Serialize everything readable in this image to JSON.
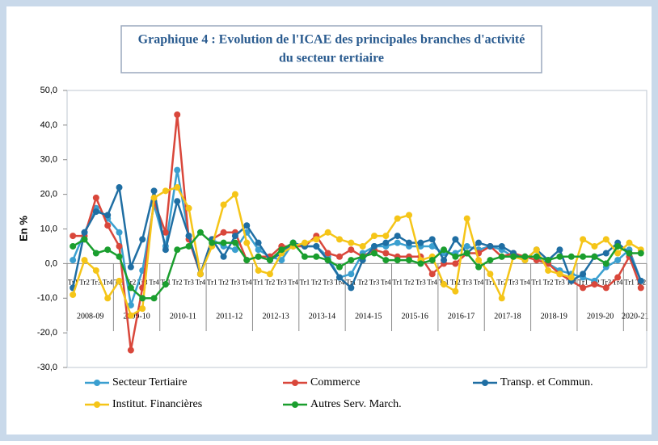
{
  "chart_data": {
    "type": "line",
    "title_lines": [
      "Graphique 4 : Evolution de l'ICAE des principales branches d'activité",
      "du secteur tertiaire"
    ],
    "y_label": "En %",
    "categories": [
      "Tr1",
      "Tr2",
      "Tr3",
      "Tr4",
      "Tr1",
      "Tr2",
      "Tr3",
      "Tr4",
      "Tr1",
      "Tr2",
      "Tr3",
      "Tr4",
      "Tr1",
      "Tr2",
      "Tr3",
      "Tr4",
      "Tr1",
      "Tr2",
      "Tr3",
      "Tr4",
      "Tr1",
      "Tr2",
      "Tr3",
      "Tr4",
      "Tr1",
      "Tr2",
      "Tr3",
      "Tr4",
      "Tr1",
      "Tr2",
      "Tr3",
      "Tr4",
      "Tr1",
      "Tr2",
      "Tr3",
      "Tr4",
      "Tr1",
      "Tr2",
      "Tr3",
      "Tr4",
      "Tr1",
      "Tr2",
      "Tr3",
      "Tr4",
      "Tr1",
      "Tr2",
      "Tr3",
      "Tr4",
      "Tr1",
      "Tr2"
    ],
    "x_groups": [
      "2008-09",
      "2009-10",
      "2010-11",
      "2011-12",
      "2012-13",
      "2013-14",
      "2014-15",
      "2015-16",
      "2016-17",
      "2017-18",
      "2018-19",
      "2019-20",
      "2020-21"
    ],
    "ylim": [
      -30,
      50
    ],
    "yticks": [
      {
        "value": -30,
        "label": "-30,0"
      },
      {
        "value": -20,
        "label": "-20,0"
      },
      {
        "value": -10,
        "label": "-10,0"
      },
      {
        "value": 0,
        "label": "0,0"
      },
      {
        "value": 10,
        "label": "10,0"
      },
      {
        "value": 20,
        "label": "20,0"
      },
      {
        "value": 30,
        "label": "30,0"
      },
      {
        "value": 40,
        "label": "40,0"
      },
      {
        "value": 50,
        "label": "50,0"
      }
    ],
    "series": [
      {
        "name": "Secteur Tertiaire",
        "color": "#3a9fd0",
        "values": [
          1,
          9,
          16,
          13,
          9,
          -12,
          -2,
          17,
          5,
          27,
          8,
          -3,
          7,
          5,
          4,
          9,
          4,
          2,
          1,
          6,
          5,
          5,
          2,
          -4,
          -3,
          3,
          5,
          5,
          6,
          5,
          5,
          5,
          3,
          3,
          5,
          4,
          5,
          4,
          2,
          2,
          2,
          0,
          -2,
          -3,
          -4,
          -5,
          -1,
          1,
          4,
          -5
        ]
      },
      {
        "name": "Commerce",
        "color": "#d9473b",
        "values": [
          8,
          8,
          19,
          11,
          5,
          -25,
          -7,
          18,
          9,
          43,
          7,
          -3,
          7,
          9,
          9,
          1,
          2,
          2,
          5,
          5,
          5,
          8,
          3,
          2,
          4,
          2,
          4,
          3,
          2,
          2,
          2,
          -3,
          0,
          0,
          3,
          3,
          5,
          2,
          3,
          2,
          1,
          0,
          -3,
          -5,
          -7,
          -6,
          -7,
          -4,
          2,
          -7
        ]
      },
      {
        "name": "Transp. et Commun.",
        "color": "#1f6ea3",
        "values": [
          -7,
          9,
          15,
          14,
          22,
          -1,
          7,
          21,
          4,
          18,
          8,
          -3,
          7,
          2,
          8,
          11,
          6,
          1,
          3,
          6,
          5,
          5,
          1,
          -4,
          -7,
          1,
          5,
          6,
          8,
          6,
          6,
          7,
          1,
          7,
          3,
          6,
          5,
          5,
          3,
          1,
          4,
          1,
          4,
          -5,
          -3,
          2,
          3,
          6,
          3,
          -5
        ]
      },
      {
        "name": "Institut. Financières",
        "color": "#f5c518",
        "values": [
          -9,
          1,
          -2,
          -10,
          -5,
          -15,
          -13,
          19,
          21,
          22,
          16,
          -3,
          5,
          17,
          20,
          6,
          -2,
          -3,
          3,
          5,
          6,
          7,
          9,
          7,
          6,
          5,
          8,
          8,
          13,
          14,
          1,
          2,
          -6,
          -8,
          13,
          1,
          -3,
          -10,
          2,
          1,
          4,
          -2,
          -3,
          -4,
          7,
          5,
          7,
          3,
          6,
          4
        ]
      },
      {
        "name": "Autres Serv. March.",
        "color": "#1a9e2e",
        "values": [
          5,
          7,
          3,
          4,
          2,
          -7,
          -10,
          -10,
          -6,
          4,
          5,
          9,
          6,
          6,
          6,
          1,
          2,
          1,
          4,
          6,
          2,
          2,
          1,
          -1,
          1,
          2,
          3,
          1,
          1,
          1,
          0,
          1,
          4,
          2,
          3,
          -1,
          1,
          2,
          2,
          2,
          2,
          1,
          2,
          2,
          2,
          2,
          0,
          5,
          3,
          3
        ]
      }
    ]
  }
}
